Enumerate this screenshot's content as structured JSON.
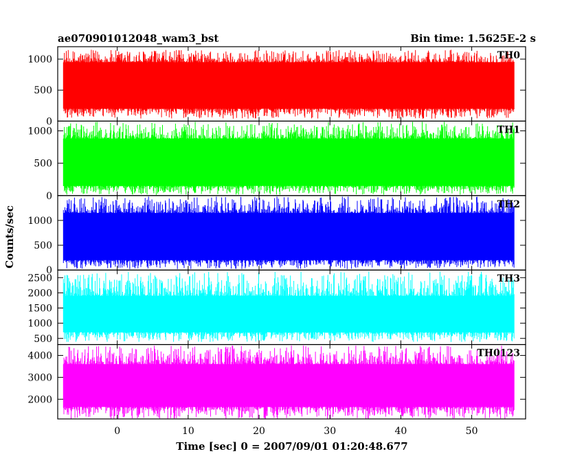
{
  "header": {
    "left_title": "ae070901012048_wam3_bst",
    "right_title": "Bin time: 1.5625E-2 s"
  },
  "chart_data": {
    "type": "line",
    "xlabel": "Time [sec] 0 = 2007/09/01 01:20:48.677",
    "ylabel": "Counts/sec",
    "xlim": [
      -8.4,
      57.6
    ],
    "x_ticks": [
      0,
      10,
      20,
      30,
      40,
      50
    ],
    "x_range": [
      -7.6,
      56.0
    ],
    "series": [
      {
        "name": "TH0",
        "color": "#ff0000",
        "ylim": [
          0,
          1200
        ],
        "y_ticks": [
          0,
          500,
          1000
        ],
        "band": [
          40,
          1150
        ],
        "core": [
          200,
          950
        ],
        "mean": 560
      },
      {
        "name": "TH1",
        "color": "#00ff00",
        "ylim": [
          0,
          1150
        ],
        "y_ticks": [
          0,
          500,
          1000
        ],
        "band": [
          10,
          1140
        ],
        "core": [
          150,
          880
        ],
        "mean": 480
      },
      {
        "name": "TH2",
        "color": "#0000ff",
        "ylim": [
          0,
          1500
        ],
        "y_ticks": [
          0,
          500,
          1000
        ],
        "band": [
          20,
          1480
        ],
        "core": [
          200,
          1150
        ],
        "mean": 650
      },
      {
        "name": "TH3",
        "color": "#00ffff",
        "ylim": [
          300,
          2750
        ],
        "y_ticks": [
          500,
          1000,
          1500,
          2000,
          2500
        ],
        "band": [
          380,
          2700
        ],
        "core": [
          700,
          1900
        ],
        "mean": 1250
      },
      {
        "name": "TH0123",
        "color": "#ff00ff",
        "ylim": [
          1100,
          4500
        ],
        "y_ticks": [
          2000,
          3000,
          4000
        ],
        "band": [
          1100,
          4450
        ],
        "core": [
          1650,
          3600
        ],
        "mean": 2600
      }
    ]
  }
}
